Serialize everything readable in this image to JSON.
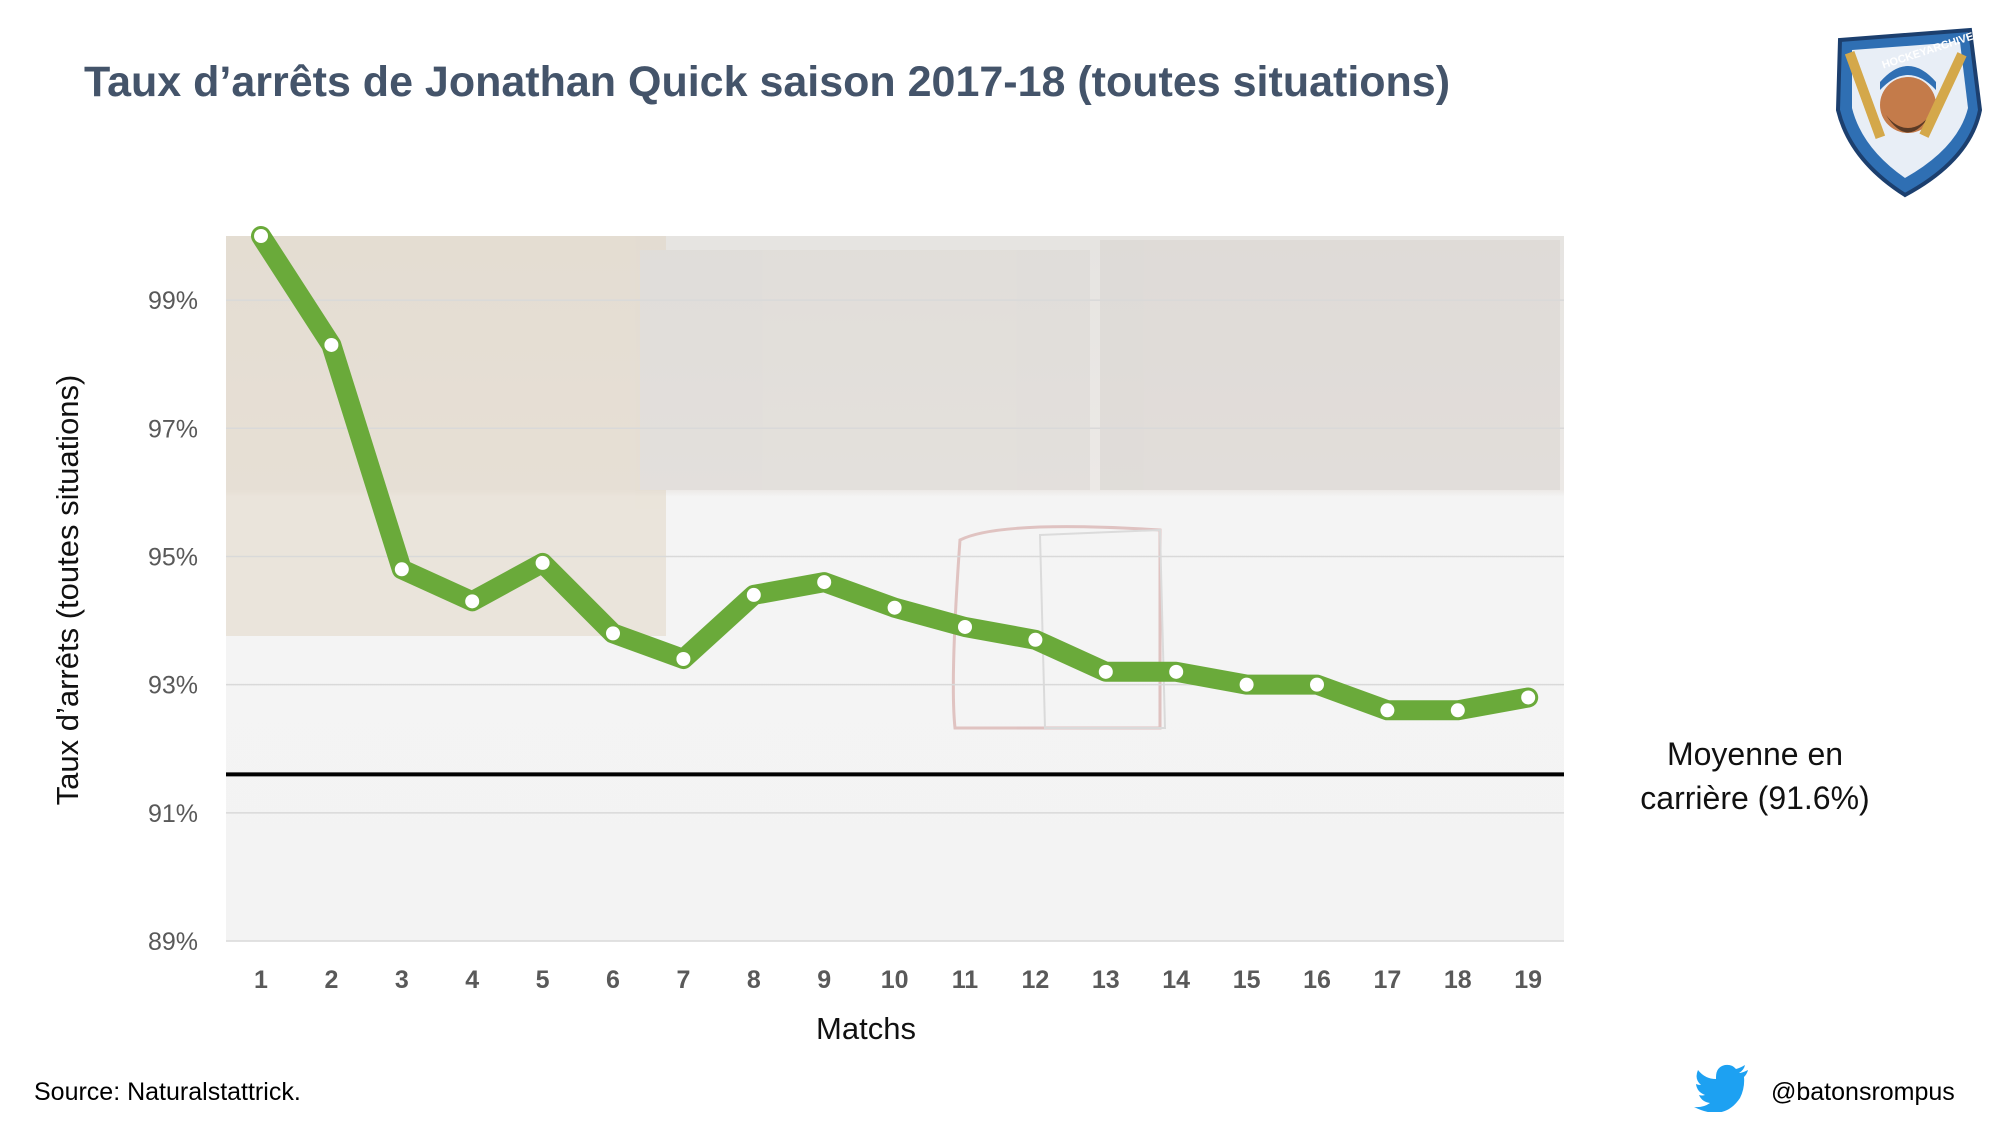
{
  "header": {
    "title": "Taux d’arrêts de Jonathan Quick saison 2017-18 (toutes situations)"
  },
  "logo": {
    "text": "HOCKEYARCHIVES.INFO",
    "icon": "hockey-player-shield-logo"
  },
  "footer": {
    "source": "Source: Naturalstattrick.",
    "handle": "@batonsrompus",
    "icon": "twitter-bird-icon"
  },
  "colors": {
    "title": "#44546a",
    "line": "#6aaa3a",
    "average": "#000000",
    "grid": "#d9d9d9"
  },
  "chart_data": {
    "type": "line",
    "title": "Taux d’arrêts de Jonathan Quick saison 2017-18 (toutes situations)",
    "xlabel": "Matchs",
    "ylabel": "Taux d’arrêts (toutes situations)",
    "categories": [
      "1",
      "2",
      "3",
      "4",
      "5",
      "6",
      "7",
      "8",
      "9",
      "10",
      "11",
      "12",
      "13",
      "14",
      "15",
      "16",
      "17",
      "18",
      "19"
    ],
    "series": [
      {
        "values": [
          100.0,
          98.3,
          94.8,
          94.3,
          94.9,
          93.8,
          93.4,
          94.4,
          94.6,
          94.2,
          93.9,
          93.7,
          93.2,
          93.2,
          93.0,
          93.0,
          92.6,
          92.6,
          92.8
        ]
      }
    ],
    "ylim": [
      89,
      100
    ],
    "yticks": [
      89,
      91,
      93,
      95,
      97,
      99
    ],
    "ytick_labels": [
      "89%",
      "91%",
      "93%",
      "95%",
      "97%",
      "99%"
    ],
    "reference_line": {
      "value": 91.6,
      "label": "Moyenne en carrière (91.6%)"
    },
    "grid": true
  }
}
